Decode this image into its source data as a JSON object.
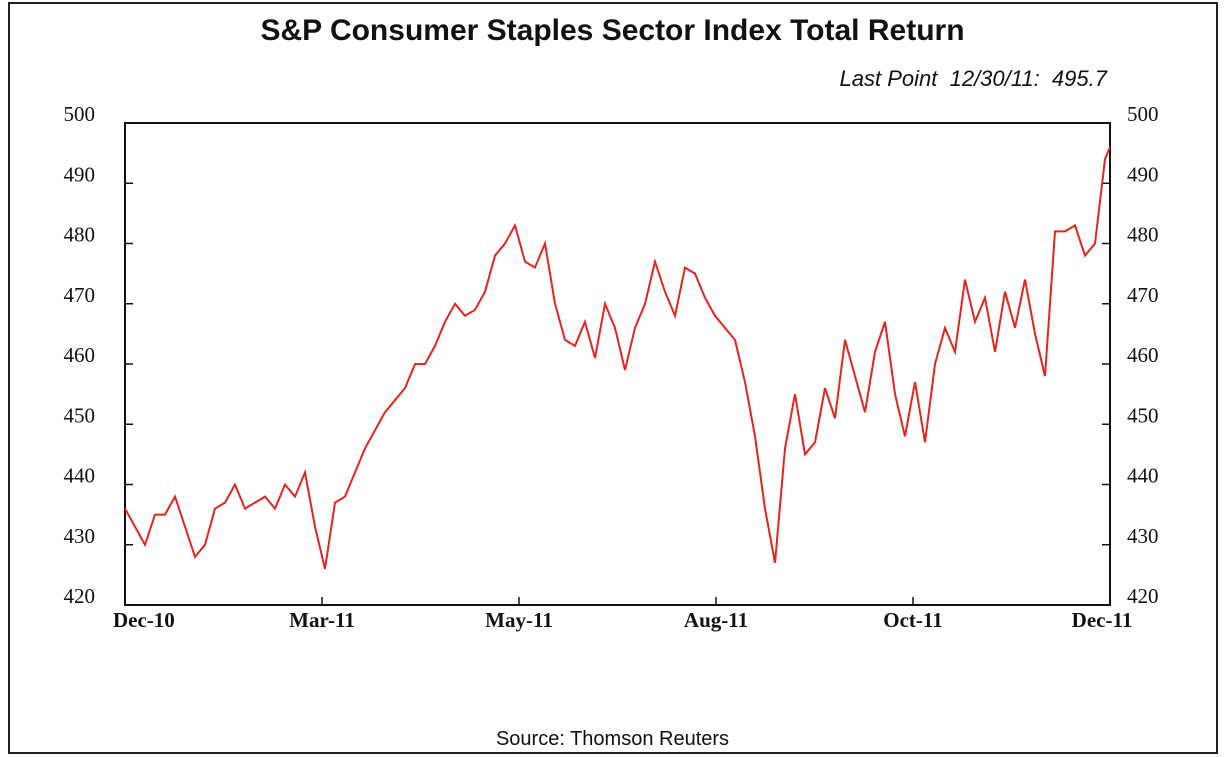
{
  "chart_data": {
    "type": "line",
    "title": "S&P Consumer Staples Sector Index Total Return",
    "subtitle": "Last Point  12/30/11:  495.7",
    "source": "Source: Thomson Reuters",
    "xlabel": "",
    "ylabel": "",
    "ylim": [
      420,
      500
    ],
    "yticks": [
      500,
      490,
      480,
      470,
      460,
      450,
      440,
      430,
      420
    ],
    "xticks": [
      "Dec-10",
      "Mar-11",
      "May-11",
      "Aug-11",
      "Oct-11",
      "Dec-11"
    ],
    "xlim": [
      "2010-12-01",
      "2011-12-30"
    ],
    "grid": false,
    "line_color": "#e8231c",
    "series": [
      {
        "x": [
          "2010-12-01",
          "2010-12-05",
          "2010-12-09",
          "2010-12-13",
          "2010-12-17",
          "2010-12-21",
          "2010-12-25",
          "2010-12-29",
          "2011-01-02",
          "2011-01-06",
          "2011-01-10",
          "2011-01-14",
          "2011-01-18",
          "2011-01-22",
          "2011-01-26",
          "2011-01-30",
          "2011-02-03",
          "2011-02-07",
          "2011-02-11",
          "2011-02-15",
          "2011-02-19",
          "2011-02-23",
          "2011-02-27",
          "2011-03-03",
          "2011-03-07",
          "2011-03-11",
          "2011-03-15",
          "2011-03-19",
          "2011-03-23",
          "2011-03-27",
          "2011-03-31",
          "2011-04-04",
          "2011-04-08",
          "2011-04-12",
          "2011-04-16",
          "2011-04-20",
          "2011-04-24",
          "2011-04-28",
          "2011-05-02",
          "2011-05-06",
          "2011-05-10",
          "2011-05-14",
          "2011-05-18",
          "2011-05-22",
          "2011-05-26",
          "2011-05-30",
          "2011-06-03",
          "2011-06-07",
          "2011-06-11",
          "2011-06-15",
          "2011-06-19",
          "2011-06-23",
          "2011-06-27",
          "2011-07-01",
          "2011-07-05",
          "2011-07-09",
          "2011-07-13",
          "2011-07-17",
          "2011-07-21",
          "2011-07-25",
          "2011-07-29",
          "2011-08-02",
          "2011-08-06",
          "2011-08-10",
          "2011-08-14",
          "2011-08-18",
          "2011-08-22",
          "2011-08-26",
          "2011-08-30",
          "2011-09-03",
          "2011-09-07",
          "2011-09-11",
          "2011-09-15",
          "2011-09-19",
          "2011-09-23",
          "2011-09-27",
          "2011-10-01",
          "2011-10-05",
          "2011-10-09",
          "2011-10-13",
          "2011-10-17",
          "2011-10-21",
          "2011-10-25",
          "2011-10-29",
          "2011-11-02",
          "2011-11-06",
          "2011-11-10",
          "2011-11-14",
          "2011-11-18",
          "2011-11-22",
          "2011-11-26",
          "2011-11-30",
          "2011-12-04",
          "2011-12-08",
          "2011-12-12",
          "2011-12-16",
          "2011-12-20",
          "2011-12-24",
          "2011-12-28",
          "2011-12-30"
        ],
        "values": [
          436,
          433,
          430,
          435,
          435,
          438,
          433,
          428,
          430,
          436,
          437,
          440,
          436,
          437,
          438,
          436,
          440,
          438,
          442,
          433,
          426,
          437,
          438,
          442,
          446,
          449,
          452,
          454,
          456,
          460,
          460,
          463,
          467,
          470,
          468,
          469,
          472,
          478,
          480,
          483,
          477,
          476,
          480,
          470,
          464,
          463,
          467,
          461,
          470,
          466,
          459,
          466,
          470,
          477,
          472,
          468,
          476,
          475,
          471,
          468,
          466,
          464,
          457,
          448,
          436,
          427,
          446,
          455,
          445,
          447,
          456,
          451,
          464,
          458,
          452,
          462,
          467,
          455,
          448,
          457,
          447,
          460,
          466,
          462,
          474,
          467,
          471,
          462,
          472,
          466,
          474,
          465,
          458,
          482,
          482,
          483,
          478,
          480,
          494,
          496
        ]
      }
    ]
  }
}
